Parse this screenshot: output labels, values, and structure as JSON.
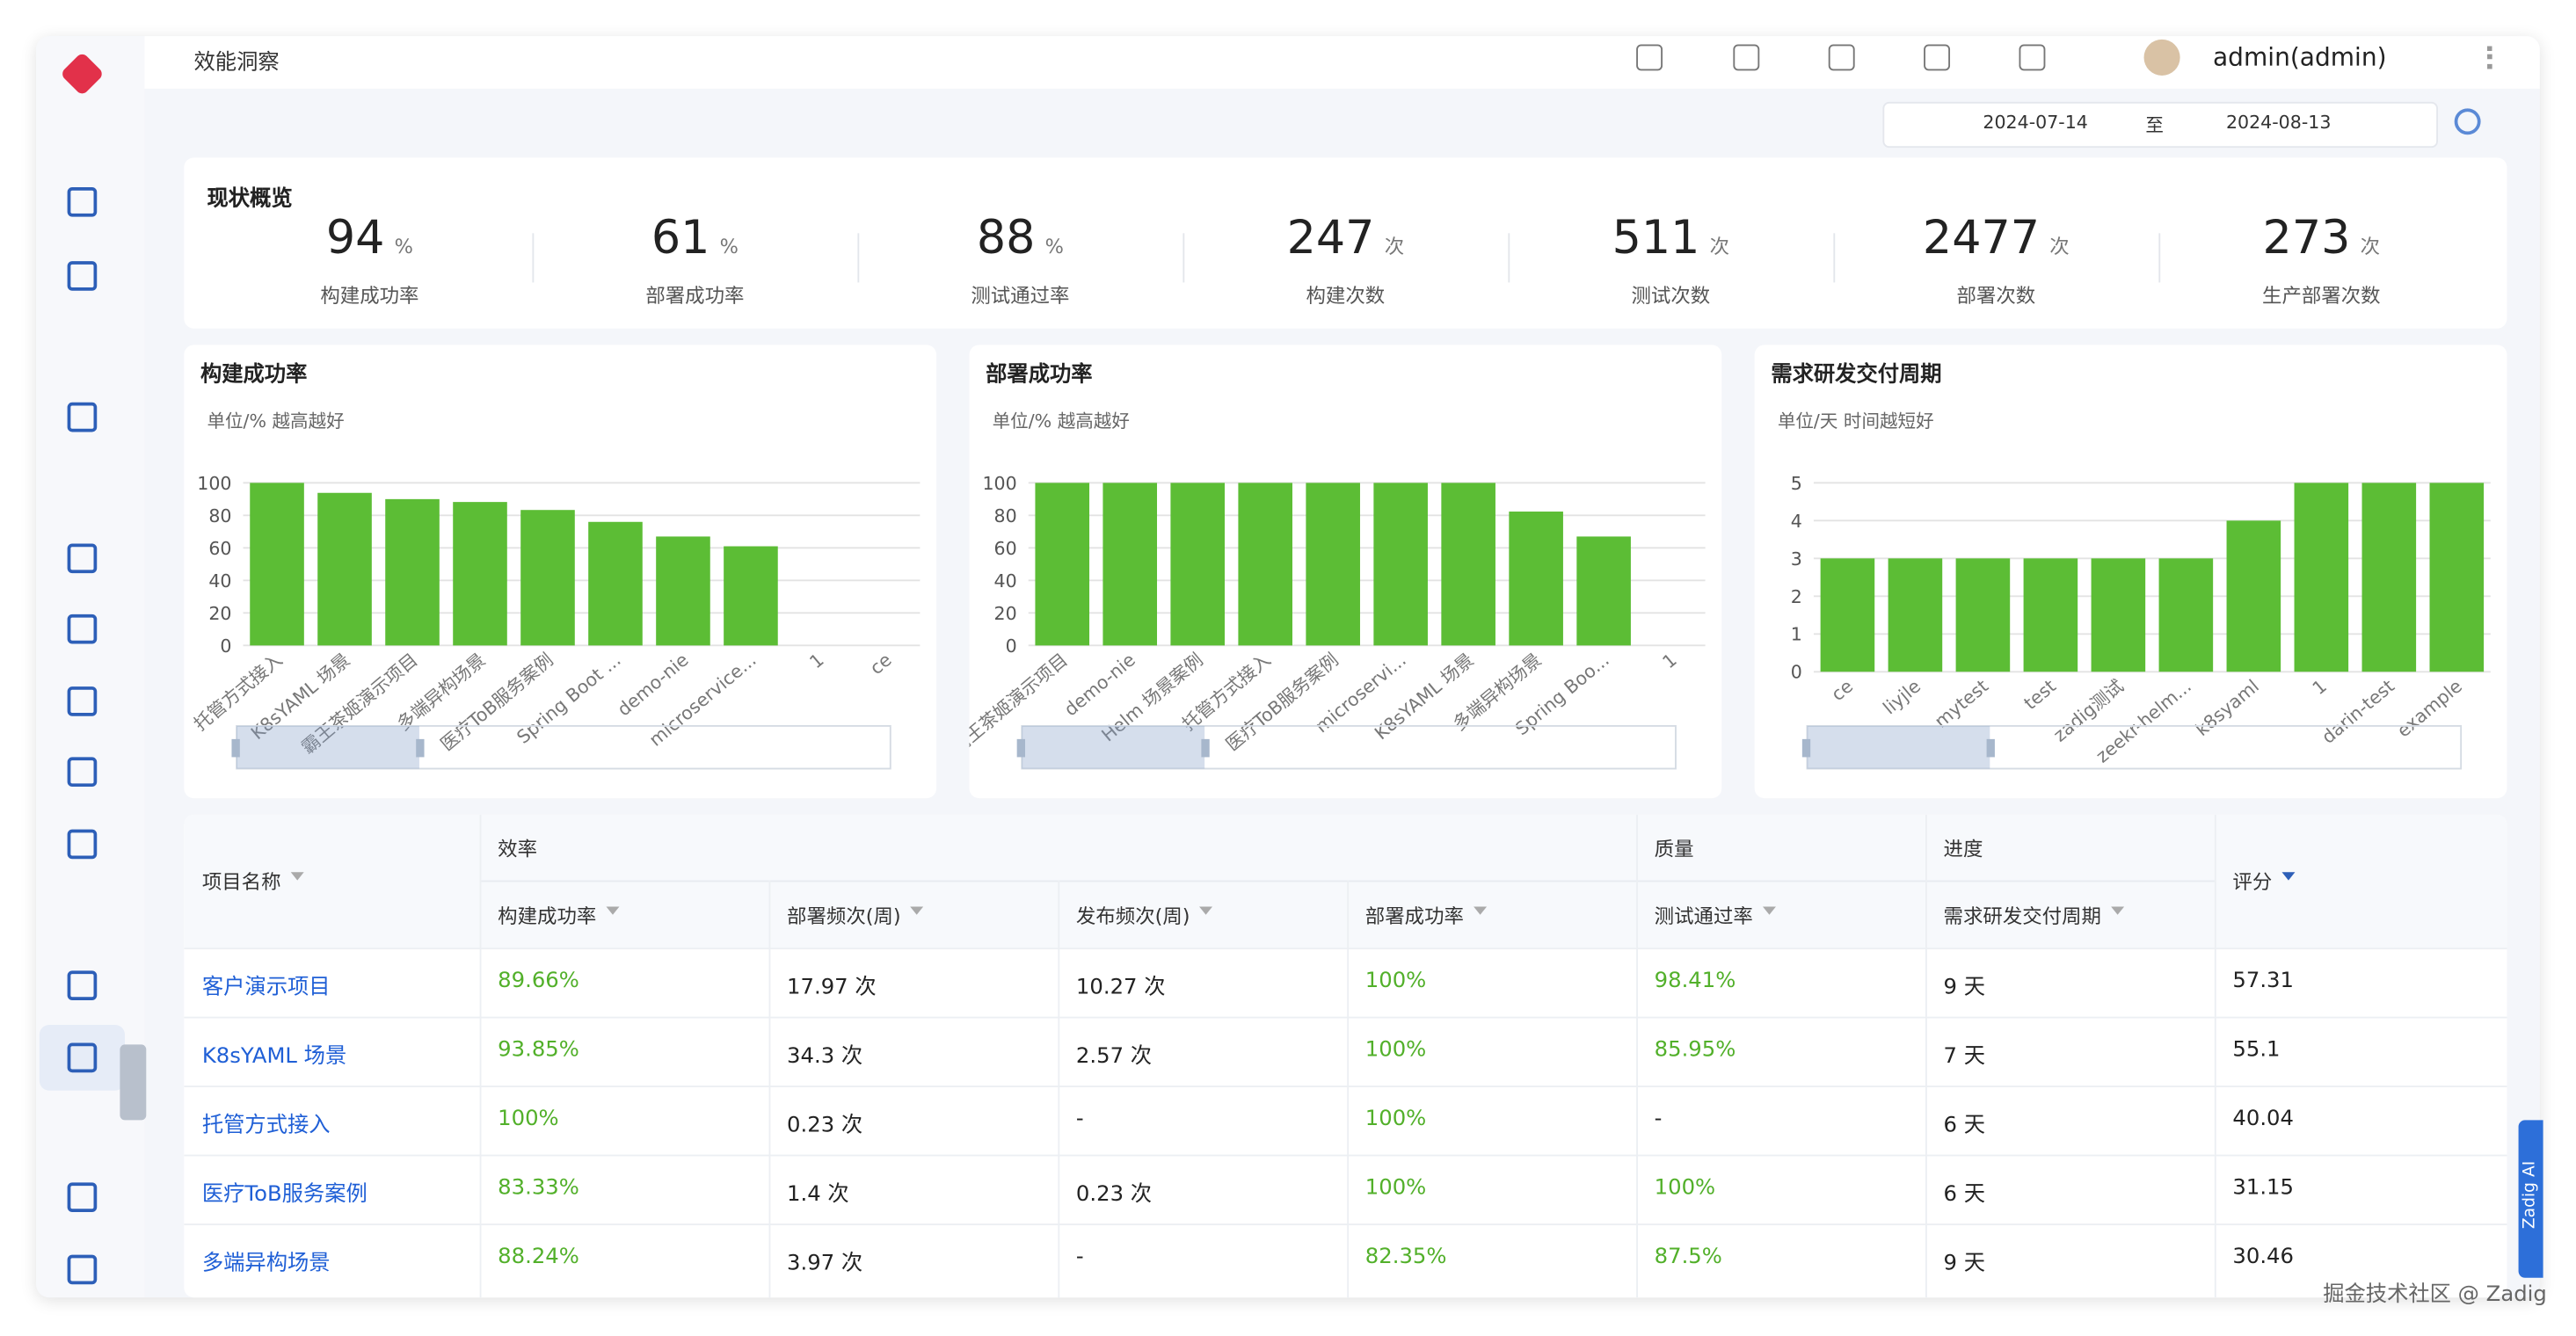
{
  "header": {
    "title": "效能洞察",
    "user": "admin(admin)",
    "date_start": "2024-07-14",
    "date_separator": "至",
    "date_end": "2024-08-13"
  },
  "summary": {
    "title": "现状概览",
    "items": [
      {
        "value": 94,
        "unit": "%",
        "label": "构建成功率"
      },
      {
        "value": 61,
        "unit": "%",
        "label": "部署成功率"
      },
      {
        "value": 88,
        "unit": "%",
        "label": "测试通过率"
      },
      {
        "value": 247,
        "unit": "次",
        "label": "构建次数"
      },
      {
        "value": 511,
        "unit": "次",
        "label": "测试次数"
      },
      {
        "value": 2477,
        "unit": "次",
        "label": "部署次数"
      },
      {
        "value": 273,
        "unit": "次",
        "label": "生产部署次数"
      }
    ]
  },
  "charts": [
    {
      "type": "bar",
      "title": "构建成功率",
      "subtitle": "单位/% 越高越好",
      "color": "#5cbd35",
      "categories": [
        "托管方式接入",
        "K8sYAML 场景",
        "霸王茶姬演示项目",
        "多端异构场景",
        "医疗ToB服务案例",
        "Spring Boot ...",
        "demo-nie",
        "microservice...",
        "1",
        "ce"
      ],
      "values": [
        100,
        93.85,
        90,
        88.24,
        83.33,
        76,
        67,
        61,
        0,
        0
      ],
      "ylim": [
        0,
        100
      ],
      "yticks": [
        0,
        20,
        40,
        60,
        80,
        100
      ],
      "grid": true
    },
    {
      "type": "bar",
      "title": "部署成功率",
      "subtitle": "单位/% 越高越好",
      "color": "#5cbd35",
      "categories": [
        "霸王茶姬演示项目",
        "demo-nie",
        "Helm 场景案例",
        "托管方式接入",
        "医疗ToB服务案例",
        "microservi...",
        "K8sYAML 场景",
        "多端异构场景",
        "Spring Boo...",
        "1"
      ],
      "values": [
        100,
        100,
        100,
        100,
        100,
        100,
        100,
        82.35,
        67,
        0
      ],
      "ylim": [
        0,
        100
      ],
      "yticks": [
        0,
        20,
        40,
        60,
        80,
        100
      ],
      "grid": true
    },
    {
      "type": "bar",
      "title": "需求研发交付周期",
      "subtitle": "单位/天 时间越短好",
      "color": "#5cbd35",
      "categories": [
        "ce",
        "liyjle",
        "mytest",
        "test",
        "zadig测试",
        "zeekr-helm...",
        "k8syaml",
        "1",
        "darin-test",
        "example"
      ],
      "values": [
        3,
        3,
        3,
        3,
        3,
        3,
        4,
        5,
        5,
        5
      ],
      "ylim": [
        0,
        5
      ],
      "yticks": [
        0,
        1,
        2,
        3,
        4,
        5
      ],
      "grid": true
    }
  ],
  "table": {
    "groups": [
      "效率",
      "质量",
      "进度"
    ],
    "headers": [
      "项目名称",
      "构建成功率",
      "部署频次(周)",
      "发布频次(周)",
      "部署成功率",
      "测试通过率",
      "需求研发交付周期",
      "评分"
    ],
    "rows": [
      [
        "客户演示项目",
        "89.66%",
        "17.97 次",
        "10.27 次",
        "100%",
        "98.41%",
        "9 天",
        "57.31"
      ],
      [
        "K8sYAML 场景",
        "93.85%",
        "34.3 次",
        "2.57 次",
        "100%",
        "85.95%",
        "7 天",
        "55.1"
      ],
      [
        "托管方式接入",
        "100%",
        "0.23 次",
        "-",
        "100%",
        "-",
        "6 天",
        "40.04"
      ],
      [
        "医疗ToB服务案例",
        "83.33%",
        "1.4 次",
        "0.23 次",
        "100%",
        "100%",
        "6 天",
        "31.15"
      ],
      [
        "多端异构场景",
        "88.24%",
        "3.97 次",
        "-",
        "82.35%",
        "87.5%",
        "9 天",
        "30.46"
      ]
    ]
  },
  "side_tab": "Zadig AI",
  "watermark": "掘金技术社区 @ Zadig"
}
